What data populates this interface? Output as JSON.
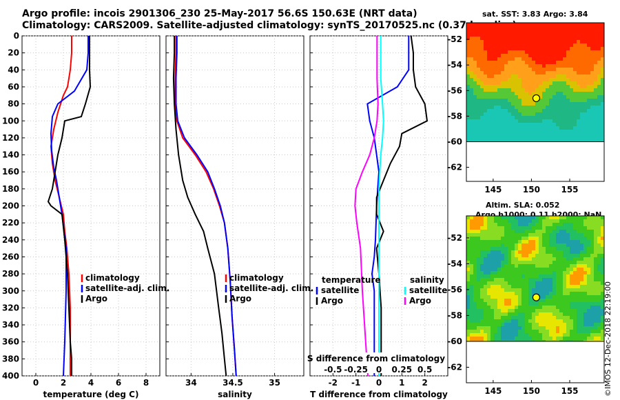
{
  "header": {
    "line1": "Argo profile: incois 2901306_230 25-May-2017 56.6S 150.63E (NRT data)",
    "line2": "Climatology: CARS2009. Satellite-adjusted climatology: synTS_20170525.nc (0.37d earlier)"
  },
  "watermark": "©IMOS 12-Dec-2018 22:19:00",
  "colors": {
    "climatology": "#ff0000",
    "satellite": "#0000ff",
    "argo": "#000000",
    "sat_s": "#00ffff",
    "clim_s": "#ff00ff"
  },
  "chart_data": [
    {
      "type": "line",
      "name": "temperature-profile",
      "xlabel": "temperature (deg C)",
      "ylabel": "depth (m)",
      "xlim": [
        -1,
        9
      ],
      "ylim": [
        400,
        0
      ],
      "xticks": [
        0,
        2,
        4,
        6,
        8
      ],
      "yticks": [
        0,
        20,
        40,
        60,
        80,
        100,
        120,
        140,
        160,
        180,
        200,
        220,
        240,
        260,
        280,
        300,
        320,
        340,
        360,
        380,
        400
      ],
      "legend": {
        "position": "right",
        "entries": [
          "climatology",
          "satellite-adj. clim.",
          "Argo"
        ]
      },
      "series": [
        {
          "name": "climatology",
          "color": "#ff0000",
          "x": [
            2.6,
            2.6,
            2.5,
            2.3,
            2.0,
            1.6,
            1.3,
            1.1,
            1.2,
            1.4,
            1.7,
            2.0,
            2.1,
            2.25,
            2.4,
            2.5,
            2.5,
            2.5
          ],
          "y": [
            0,
            20,
            40,
            60,
            70,
            90,
            110,
            130,
            150,
            170,
            190,
            210,
            230,
            250,
            280,
            320,
            360,
            400
          ]
        },
        {
          "name": "satellite-adj. clim.",
          "color": "#0000ff",
          "x": [
            3.8,
            3.8,
            3.7,
            2.8,
            1.6,
            1.2,
            1.1,
            1.15,
            1.3,
            1.5,
            1.7,
            1.9,
            2.05,
            2.2,
            2.2,
            2.1,
            2.0
          ],
          "y": [
            0,
            20,
            40,
            65,
            80,
            95,
            115,
            135,
            155,
            170,
            190,
            210,
            230,
            250,
            300,
            360,
            400
          ]
        },
        {
          "name": "Argo",
          "color": "#000000",
          "x": [
            3.9,
            3.9,
            3.9,
            3.95,
            3.6,
            3.3,
            2.1,
            1.9,
            1.6,
            1.4,
            1.2,
            0.9,
            1.1,
            1.9,
            2.1,
            2.3,
            2.4,
            2.5,
            2.6,
            2.6
          ],
          "y": [
            0,
            20,
            40,
            60,
            80,
            95,
            100,
            120,
            140,
            160,
            180,
            195,
            200,
            210,
            240,
            280,
            320,
            360,
            380,
            400
          ]
        }
      ]
    },
    {
      "type": "line",
      "name": "salinity-profile",
      "xlabel": "salinity",
      "xlim": [
        33.7,
        35.35
      ],
      "ylim": [
        400,
        0
      ],
      "xticks": [
        34,
        34.5,
        35
      ],
      "legend": {
        "position": "right",
        "entries": [
          "climatology",
          "satellite-adj. clim.",
          "Argo"
        ]
      },
      "series": [
        {
          "name": "climatology",
          "color": "#ff0000",
          "x": [
            33.82,
            33.82,
            33.81,
            33.81,
            33.83,
            33.9,
            34.05,
            34.18,
            34.27,
            34.34,
            34.4,
            34.44,
            34.47,
            34.49,
            34.52,
            34.54
          ],
          "y": [
            0,
            20,
            50,
            80,
            100,
            120,
            140,
            160,
            180,
            200,
            220,
            250,
            290,
            330,
            370,
            400
          ]
        },
        {
          "name": "satellite-adj. clim.",
          "color": "#0000ff",
          "x": [
            33.83,
            33.83,
            33.82,
            33.82,
            33.84,
            33.92,
            34.07,
            34.2,
            34.28,
            34.35,
            34.4,
            34.44,
            34.47,
            34.49,
            34.52,
            34.54
          ],
          "y": [
            0,
            20,
            50,
            80,
            100,
            120,
            140,
            160,
            180,
            200,
            220,
            250,
            290,
            330,
            370,
            400
          ]
        },
        {
          "name": "Argo",
          "color": "#000000",
          "x": [
            33.8,
            33.8,
            33.79,
            33.8,
            33.82,
            33.85,
            33.9,
            33.96,
            34.05,
            34.15,
            34.2,
            34.28,
            34.33,
            34.37,
            34.4,
            34.42
          ],
          "y": [
            0,
            20,
            50,
            80,
            110,
            140,
            170,
            190,
            210,
            230,
            250,
            280,
            320,
            350,
            380,
            400
          ]
        }
      ]
    },
    {
      "type": "line",
      "name": "difference-profile",
      "xlabel": "T difference from climatology",
      "top_axis_label": "S difference from climatology",
      "xlim": [
        -3,
        3
      ],
      "ylim": [
        400,
        0
      ],
      "xticks": [
        -2,
        -1,
        0,
        1,
        2
      ],
      "top_ticks_s": [
        -0.5,
        -0.25,
        0,
        0.25,
        0.5
      ],
      "s_xlim": [
        -0.75,
        0.75
      ],
      "legend": {
        "position": "right",
        "groups": [
          {
            "title": "temperature",
            "entries": [
              "satellite",
              "Argo"
            ]
          },
          {
            "title": "salinity",
            "entries": [
              "satellite",
              "Argo"
            ]
          }
        ]
      },
      "series": [
        {
          "name": "temperature satellite",
          "variable": "T",
          "color": "#0000ff",
          "x": [
            1.3,
            1.3,
            1.3,
            0.8,
            -0.5,
            -0.4,
            -0.2,
            -0.1,
            0.0,
            -0.05,
            -0.1,
            -0.15,
            -0.2,
            -0.3,
            -0.2,
            -0.2,
            -0.2
          ],
          "y": [
            0,
            20,
            40,
            60,
            80,
            100,
            120,
            140,
            160,
            180,
            200,
            240,
            260,
            280,
            300,
            340,
            400
          ]
        },
        {
          "name": "temperature Argo",
          "variable": "T",
          "color": "#000000",
          "x": [
            1.4,
            1.5,
            1.5,
            1.6,
            2.0,
            2.1,
            1.0,
            0.9,
            0.5,
            0.2,
            -0.1,
            -0.1,
            0.2,
            -0.1,
            0.0,
            0.1,
            0.1,
            0.1
          ],
          "y": [
            0,
            20,
            40,
            60,
            80,
            100,
            115,
            130,
            150,
            170,
            190,
            210,
            230,
            250,
            280,
            320,
            360,
            400
          ]
        },
        {
          "name": "salinity satellite",
          "variable": "S",
          "color": "#00ffff",
          "x": [
            0.02,
            0.02,
            0.02,
            0.04,
            0.05,
            0.04,
            0.02,
            0.01,
            0.0,
            0.0,
            0.0,
            0.0,
            0.0,
            0.0,
            0.0
          ],
          "y": [
            0,
            20,
            50,
            80,
            100,
            120,
            140,
            160,
            180,
            200,
            240,
            280,
            320,
            360,
            400
          ]
        },
        {
          "name": "salinity Argo",
          "variable": "S",
          "color": "#ff00ff",
          "x": [
            -0.02,
            -0.02,
            -0.02,
            -0.01,
            -0.02,
            -0.05,
            -0.1,
            -0.18,
            -0.25,
            -0.26,
            -0.24,
            -0.2,
            -0.18,
            -0.15,
            -0.12
          ],
          "y": [
            0,
            20,
            50,
            80,
            100,
            120,
            140,
            160,
            180,
            200,
            220,
            250,
            300,
            350,
            400
          ]
        }
      ]
    }
  ],
  "maps": [
    {
      "name": "sst-map",
      "title": "sat. SST: 3.83  Argo: 3.84",
      "yticks": [
        "-52",
        "-54",
        "-56",
        "-58",
        "-60",
        "-62"
      ],
      "xticks": [
        "145",
        "150",
        "155"
      ],
      "float_lon": 150.63,
      "float_lat": -56.6
    },
    {
      "name": "sla-map",
      "title1": "Altim. SLA: 0.052",
      "title2": "Argo h1000: 0.11  h2000: NaN",
      "yticks": [
        "-52",
        "-54",
        "-56",
        "-58",
        "-60",
        "-62"
      ],
      "xticks": [
        "145",
        "150",
        "155"
      ],
      "float_lon": 150.63,
      "float_lat": -56.6
    }
  ]
}
